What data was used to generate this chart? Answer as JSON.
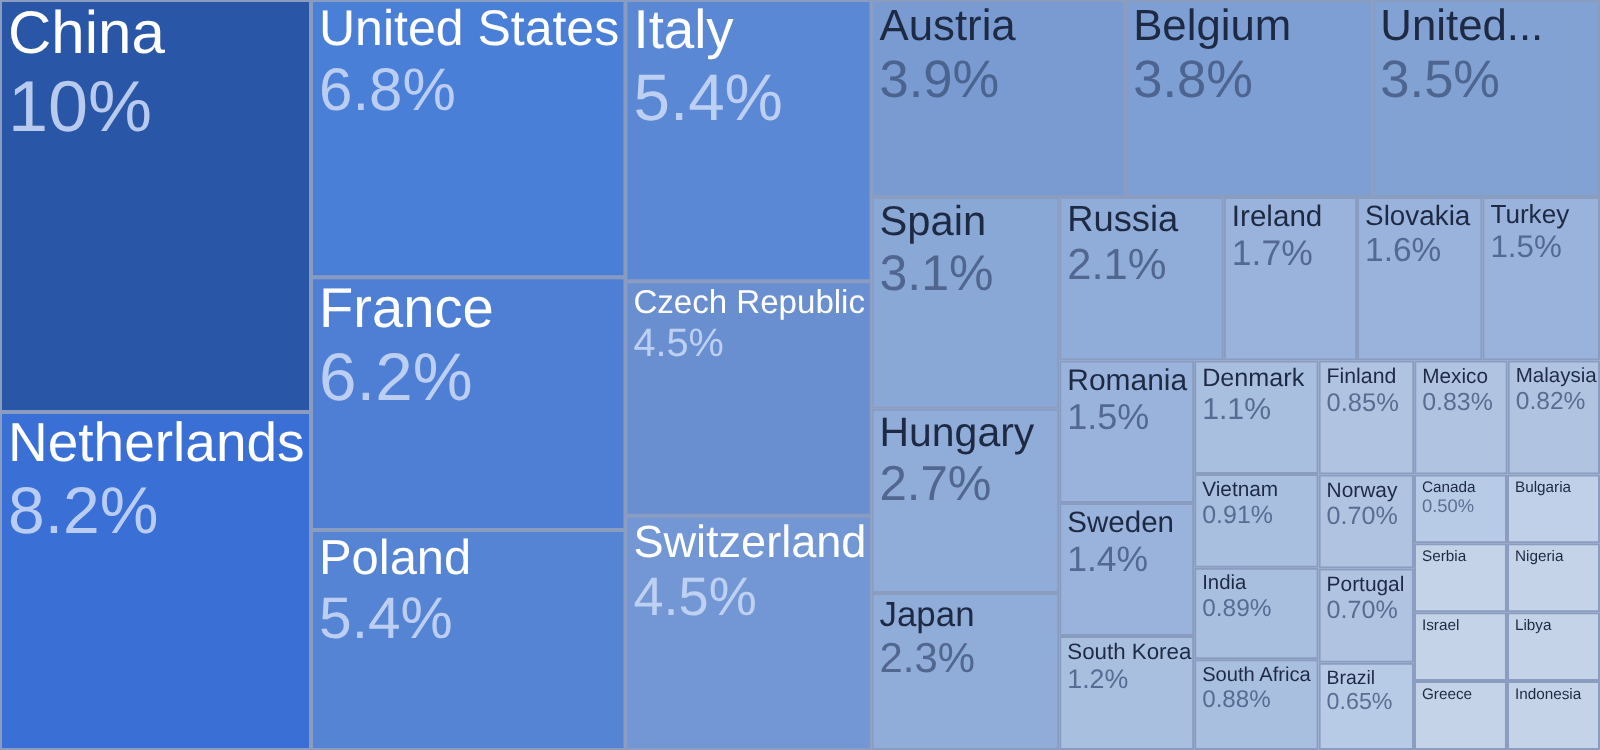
{
  "chart_data": {
    "type": "other",
    "categories": [
      "China",
      "Netherlands",
      "United States",
      "France",
      "Poland",
      "Italy",
      "Czech Republic",
      "Switzerland",
      "Austria",
      "Belgium",
      "United...",
      "Spain",
      "Hungary",
      "Japan",
      "Russia",
      "Ireland",
      "Slovakia",
      "Turkey",
      "Romania",
      "Sweden",
      "South Korea",
      "Denmark",
      "Vietnam",
      "India",
      "South Africa",
      "Finland",
      "Mexico",
      "Malaysia",
      "Norway",
      "Portugal",
      "Brazil",
      "Canada",
      "Bulgaria",
      "Serbia",
      "Nigeria",
      "Israel",
      "Greece",
      "Libya",
      "Indonesia"
    ],
    "values": [
      10,
      8.2,
      6.8,
      6.2,
      5.4,
      5.4,
      4.5,
      4.5,
      3.9,
      3.8,
      3.5,
      3.1,
      2.7,
      2.3,
      2.1,
      1.7,
      1.6,
      1.5,
      1.5,
      1.4,
      1.2,
      1.1,
      0.91,
      0.89,
      0.88,
      0.85,
      0.83,
      0.82,
      0.7,
      0.7,
      0.65,
      0.5,
      null,
      null,
      null,
      null,
      null,
      null,
      null
    ],
    "value_labels": [
      "10%",
      "8.2%",
      "6.8%",
      "6.2%",
      "5.4%",
      "5.4%",
      "4.5%",
      "4.5%",
      "3.9%",
      "3.8%",
      "3.5%",
      "3.1%",
      "2.7%",
      "2.3%",
      "2.1%",
      "1.7%",
      "1.6%",
      "1.5%",
      "1.5%",
      "1.4%",
      "1.2%",
      "1.1%",
      "0.91%",
      "0.89%",
      "0.88%",
      "0.85%",
      "0.83%",
      "0.82%",
      "0.70%",
      "0.70%",
      "0.65%",
      "0.50%",
      null,
      null,
      null,
      null,
      null,
      null,
      null
    ],
    "colors": [
      "#2a56a8",
      "#3a6fd6",
      "#4a7fd8",
      "#4f7fd4",
      "#5584d4",
      "#5a88d4",
      "#6a8fd0",
      "#7396d4",
      "#7a9bd2",
      "#7e9fd4",
      "#82a2d4",
      "#8aa8d6",
      "#90acd8",
      "#90acd8",
      "#90acd8",
      "#9ab3dc",
      "#9ab3dc",
      "#9ab3dc",
      "#9ab3dc",
      "#9ab3dc",
      "#a9bfe0",
      "#a9bfe0",
      "#a9bfe0",
      "#a9bfe0",
      "#a9bfe0",
      "#b0c4e2",
      "#b0c4e2",
      "#b0c4e2",
      "#b0c4e2",
      "#b0c4e2",
      "#b8cbe6",
      "#b8cbe6",
      "#c0d0e8",
      "#c5d3e8",
      "#c5d3e8",
      "#c5d3e8",
      "#c5d3e8",
      "#c5d3e8",
      "#c5d3e8"
    ]
  }
}
